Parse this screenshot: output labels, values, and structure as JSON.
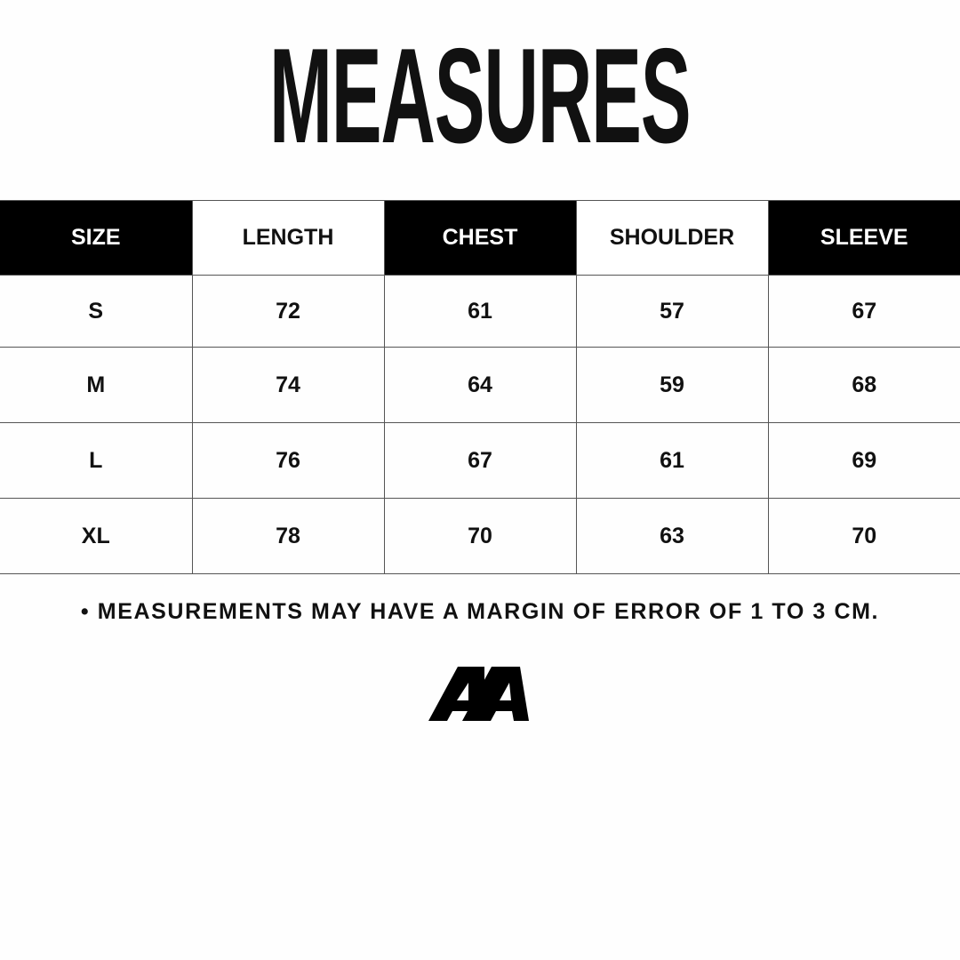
{
  "title": "MEASURES",
  "table": {
    "headers": [
      "SIZE",
      "LENGTH",
      "CHEST",
      "SHOULDER",
      "SLEEVE"
    ],
    "rows": [
      [
        "S",
        "72",
        "61",
        "57",
        "67"
      ],
      [
        "M",
        "74",
        "64",
        "59",
        "68"
      ],
      [
        "L",
        "76",
        "67",
        "61",
        "69"
      ],
      [
        "XL",
        "78",
        "70",
        "63",
        "70"
      ]
    ]
  },
  "note": "• MEASUREMENTS MAY HAVE A MARGIN OF ERROR OF 1 TO 3 CM.",
  "logo": "AA",
  "colors": {
    "dark": "#000000",
    "light": "#ffffff"
  }
}
